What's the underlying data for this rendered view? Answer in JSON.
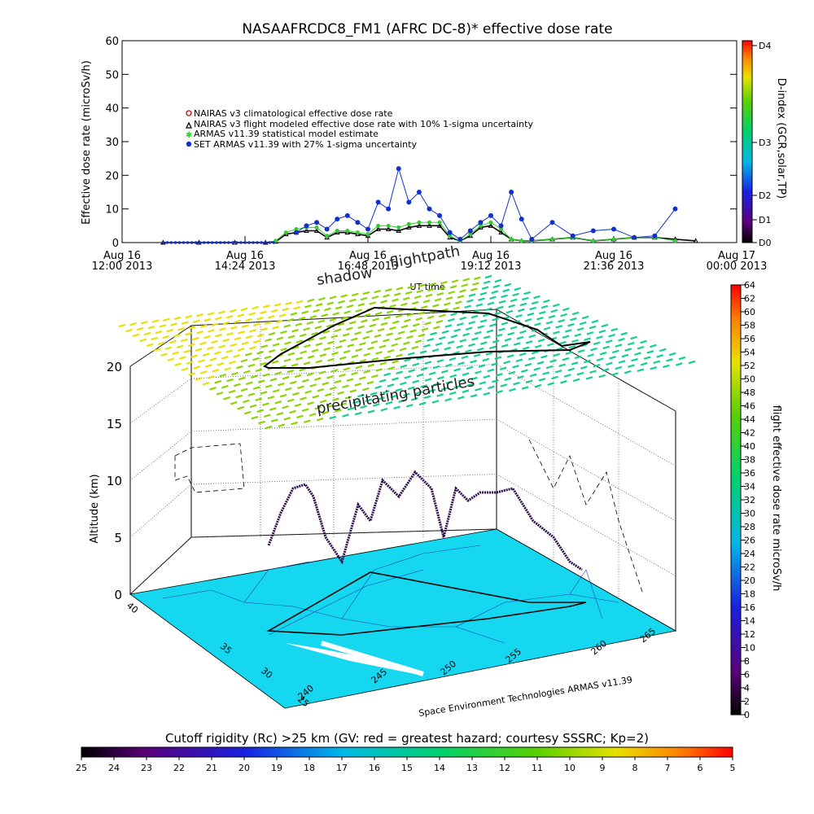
{
  "chart_data": [
    {
      "type": "scatter",
      "title": "NASAAFRCDC8_FM1 (AFRC DC-8)* effective dose rate",
      "ylabel": "Effective dose rate (microSv/h)",
      "xlabel": "UT time",
      "ylim": [
        0,
        60
      ],
      "yticks": [
        "0",
        "10",
        "20",
        "30",
        "40",
        "50",
        "60"
      ],
      "xticks": [
        {
          "day": "Aug 16",
          "time": "12:00 2013",
          "h": 0
        },
        {
          "day": "Aug 16",
          "time": "14:24 2013",
          "h": 2.4
        },
        {
          "day": "Aug 16",
          "time": "16:48 2013",
          "h": 4.8
        },
        {
          "day": "Aug 16",
          "time": "19:12 2013",
          "h": 7.2
        },
        {
          "day": "Aug 16",
          "time": "21:36 2013",
          "h": 9.6
        },
        {
          "day": "Aug 17",
          "time": "00:00 2013",
          "h": 12
        }
      ],
      "legend_position": "upper-left",
      "legend": [
        "NAIRAS v3 climatological effective dose rate",
        "NAIRAS v3 flight modeled effective dose rate with 10% 1-sigma uncertainty",
        "ARMAS v11.39 statistical model estimate",
        "SET ARMAS v11.39 with 27% 1-sigma uncertainty"
      ],
      "series": [
        {
          "name": "NAIRAS v3 flight modeled effective dose rate with 10% 1-sigma uncertainty",
          "x_hours": [
            0.8,
            1.5,
            2.2,
            2.8,
            3.0,
            3.2,
            3.4,
            3.6,
            3.8,
            4.0,
            4.2,
            4.4,
            4.6,
            4.8,
            5.0,
            5.2,
            5.4,
            5.6,
            5.8,
            6.0,
            6.2,
            6.4,
            6.6,
            6.8,
            7.0,
            7.2,
            7.4,
            7.6,
            7.8,
            8.0,
            8.4,
            8.8,
            9.2,
            9.6,
            10.0,
            10.4,
            10.8,
            11.2
          ],
          "values": [
            0,
            0,
            0,
            0,
            0.3,
            2.5,
            3.0,
            3.5,
            3.5,
            1.5,
            3.0,
            3.0,
            2.5,
            2.0,
            4.0,
            4.0,
            3.5,
            4.5,
            5.0,
            5.0,
            5.0,
            1.5,
            0.5,
            2.0,
            4.5,
            5.0,
            3.0,
            1.0,
            0.5,
            0.5,
            1.0,
            1.5,
            0.5,
            1.0,
            1.5,
            1.5,
            1.0,
            0.5
          ]
        },
        {
          "name": "ARMAS v11.39 statistical model estimate",
          "x_hours": [
            3.0,
            3.2,
            3.4,
            3.6,
            3.8,
            4.0,
            4.2,
            4.4,
            4.6,
            4.8,
            5.0,
            5.2,
            5.4,
            5.6,
            5.8,
            6.0,
            6.2,
            6.4,
            6.6,
            6.8,
            7.0,
            7.2,
            7.4,
            7.6,
            7.8,
            8.0,
            8.4,
            8.8,
            9.2,
            9.6,
            10.0,
            10.4,
            10.8
          ],
          "values": [
            0.5,
            3.0,
            4.0,
            4.5,
            4.5,
            2.0,
            3.5,
            3.5,
            3.0,
            2.5,
            5.0,
            5.0,
            4.5,
            5.5,
            6.0,
            6.0,
            6.0,
            2.0,
            0.5,
            2.5,
            5.0,
            6.0,
            4.0,
            1.0,
            0.5,
            0.5,
            1.0,
            1.5,
            0.5,
            1.0,
            1.5,
            1.5,
            0.5
          ]
        },
        {
          "name": "SET ARMAS v11.39 with 27% 1-sigma uncertainty",
          "x_hours": [
            3.4,
            3.6,
            3.8,
            4.0,
            4.2,
            4.4,
            4.6,
            4.8,
            5.0,
            5.2,
            5.4,
            5.6,
            5.8,
            6.0,
            6.2,
            6.4,
            6.6,
            6.8,
            7.0,
            7.2,
            7.4,
            7.6,
            7.8,
            8.0,
            8.4,
            8.8,
            9.2,
            9.6,
            10.0,
            10.4,
            10.8
          ],
          "values": [
            3.0,
            5.0,
            6.0,
            4.0,
            7.0,
            8.0,
            6.0,
            4.0,
            12.0,
            10.0,
            22.0,
            12.0,
            15.0,
            10.0,
            8.0,
            3.0,
            1.0,
            3.5,
            6.0,
            8.0,
            5.0,
            15.0,
            7.0,
            1.0,
            6.0,
            2.0,
            3.5,
            4.0,
            1.5,
            2.0,
            10.0
          ]
        }
      ],
      "secondary_axis": {
        "label": "D-index (GCR,solar,TP)",
        "ticks": [
          "D0",
          "D1",
          "D2",
          "D3",
          "D4"
        ]
      },
      "colors": {
        "nairas_climatological": "#e00000",
        "nairas_flight": "#000000",
        "armas_model": "#33cc33",
        "set_armas": "#1030d0"
      }
    },
    {
      "type": "scatter",
      "ylabel": "Altitude (km)",
      "zticks": [
        "0",
        "5",
        "10",
        "15",
        "20"
      ],
      "lat_ticks": [
        "25",
        "30",
        "35",
        "40"
      ],
      "lon_ticks": [
        "240",
        "245",
        "250",
        "255",
        "260",
        "265"
      ],
      "annotations": [
        "flightpath",
        "shadow",
        "precipitating particles"
      ],
      "credit": "Space Environment Technologies ARMAS v11.39",
      "colorbar": {
        "label": "flight effective dose rate microSv/h",
        "min": 0,
        "max": 64,
        "ticks": [
          "0",
          "2",
          "4",
          "6",
          "8",
          "10",
          "12",
          "14",
          "16",
          "18",
          "20",
          "22",
          "24",
          "26",
          "28",
          "30",
          "32",
          "34",
          "36",
          "38",
          "40",
          "42",
          "44",
          "46",
          "48",
          "50",
          "52",
          "54",
          "56",
          "58",
          "60",
          "62",
          "64"
        ]
      }
    },
    {
      "type": "heatmap",
      "title": "Cutoff rigidity (Rc) >25 km (GV: red = greatest hazard; courtesy SSSRC; Kp=2)",
      "ticks": [
        "25",
        "24",
        "23",
        "22",
        "21",
        "20",
        "19",
        "18",
        "17",
        "16",
        "15",
        "14",
        "13",
        "12",
        "11",
        "10",
        "9",
        "8",
        "7",
        "6",
        "5"
      ],
      "map_fill": "#15d8f0"
    }
  ]
}
